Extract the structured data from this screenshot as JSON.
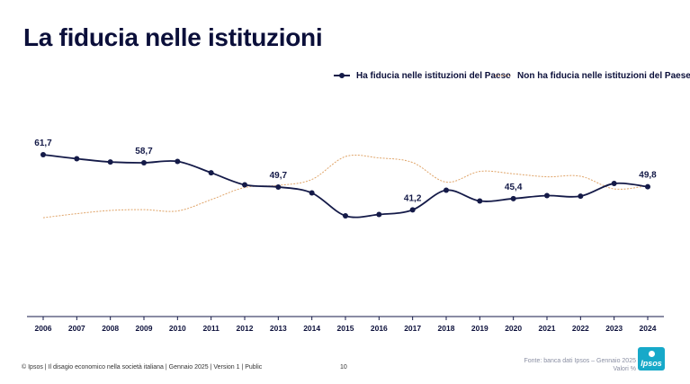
{
  "title": "La fiducia nelle istituzioni",
  "footer": {
    "left": "© Ipsos | Il disagio economico nella società italiana | Gennaio 2025 | Version 1 | Public",
    "page": "10",
    "source_line1": "Fonte: banca dati Ipsos – Gennaio 2025",
    "source_line2": "Valori %"
  },
  "logo_text": "Ipsos",
  "colors": {
    "series1": "#141a48",
    "series2": "#e0a56a"
  },
  "chart_data": {
    "type": "line",
    "x": [
      "2006",
      "2007",
      "2008",
      "2009",
      "2010",
      "2011",
      "2012",
      "2013",
      "2014",
      "2015",
      "2016",
      "2017",
      "2018",
      "2019",
      "2020",
      "2021",
      "2022",
      "2023",
      "2024"
    ],
    "series": [
      {
        "name": "Ha fiducia nelle istituzioni del Paese",
        "values": [
          61.7,
          60.2,
          59.0,
          58.7,
          59.2,
          55.0,
          50.5,
          49.7,
          47.5,
          39.0,
          39.5,
          41.2,
          48.5,
          44.5,
          45.4,
          46.5,
          46.3,
          51.0,
          49.8
        ],
        "labels": {
          "0": "61,7",
          "3": "58,7",
          "7": "49,7",
          "11": "41,2",
          "14": "45,4",
          "18": "49,8"
        }
      },
      {
        "name": "Non ha fiducia nelle istituzioni del Paese",
        "values": [
          38.3,
          39.8,
          41.0,
          41.3,
          40.8,
          45.0,
          49.5,
          50.3,
          52.5,
          61.0,
          60.5,
          58.8,
          51.5,
          55.5,
          54.6,
          53.5,
          53.7,
          49.0,
          50.2
        ]
      }
    ],
    "ylim": [
      0,
      80
    ],
    "grid": false,
    "legend": "top-right"
  }
}
